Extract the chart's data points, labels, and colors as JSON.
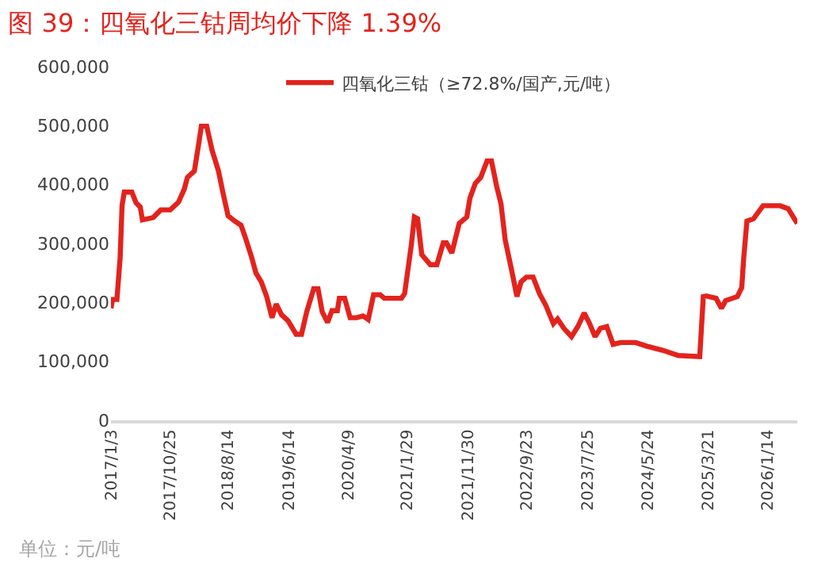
{
  "chart_data": {
    "type": "line",
    "title": "图 39：四氧化三钴周均价下降 1.39%",
    "x": [
      "2017-01-03",
      "2017-01-11",
      "2017-02-02",
      "2017-02-18",
      "2017-02-28",
      "2017-03-11",
      "2017-04-18",
      "2017-05-09",
      "2017-05-30",
      "2017-06-10",
      "2017-08-03",
      "2017-09-10",
      "2017-10-28",
      "2017-12-08",
      "2018-01-06",
      "2018-01-22",
      "2018-02-26",
      "2018-03-17",
      "2018-04-02",
      "2018-04-29",
      "2018-05-26",
      "2018-06-27",
      "2018-07-19",
      "2018-08-14",
      "2018-09-16",
      "2018-10-18",
      "2018-11-08",
      "2018-12-11",
      "2019-01-01",
      "2019-01-28",
      "2019-02-24",
      "2019-03-23",
      "2019-04-13",
      "2019-05-10",
      "2019-06-11",
      "2019-07-22",
      "2019-08-18",
      "2019-09-13",
      "2019-10-18",
      "2019-11-09",
      "2019-11-30",
      "2019-12-27",
      "2020-01-18",
      "2020-02-14",
      "2020-02-24",
      "2020-03-22",
      "2020-04-18",
      "2020-05-20",
      "2020-06-22",
      "2020-07-18",
      "2020-08-14",
      "2020-09-16",
      "2020-10-07",
      "2021-01-01",
      "2021-01-17",
      "2021-02-19",
      "2021-03-07",
      "2021-03-23",
      "2021-04-13",
      "2021-05-26",
      "2021-06-28",
      "2021-07-30",
      "2021-08-15",
      "2021-09-11",
      "2021-10-18",
      "2021-11-25",
      "2021-12-11",
      "2022-01-07",
      "2022-02-03",
      "2022-03-07",
      "2022-03-29",
      "2022-04-24",
      "2022-05-16",
      "2022-06-06",
      "2022-07-08",
      "2022-08-04",
      "2022-08-25",
      "2022-09-21",
      "2022-10-24",
      "2022-11-25",
      "2022-12-27",
      "2023-02-03",
      "2023-02-24",
      "2023-03-28",
      "2023-05-05",
      "2023-06-06",
      "2023-07-08",
      "2023-08-04",
      "2023-08-31",
      "2023-09-27",
      "2023-10-29",
      "2023-11-30",
      "2024-01-07",
      "2024-03-22",
      "2024-05-15",
      "2024-08-03",
      "2024-10-23",
      "2025-02-07",
      "2025-02-25",
      "2025-03-12",
      "2025-04-30",
      "2025-05-27",
      "2025-06-17",
      "2025-08-15",
      "2025-09-06",
      "2025-09-16",
      "2025-10-02",
      "2025-11-04",
      "2025-12-22",
      "2026-03-18",
      "2026-04-27",
      "2026-06-12"
    ],
    "series": [
      {
        "name": "四氧化三钴（≥72.8%/国产,元/吨）",
        "color": "#e3231d",
        "values": [
          190000,
          205000,
          205000,
          275000,
          365000,
          387000,
          387000,
          369000,
          362000,
          340000,
          344000,
          357000,
          357000,
          370000,
          392000,
          412000,
          423000,
          463000,
          499000,
          499000,
          458000,
          423000,
          387000,
          347000,
          338000,
          331000,
          311000,
          276000,
          250000,
          235000,
          210000,
          174000,
          197000,
          179000,
          169000,
          146000,
          146000,
          184000,
          223000,
          223000,
          184000,
          166000,
          186000,
          186000,
          207000,
          207000,
          174000,
          174000,
          177000,
          171000,
          213000,
          213000,
          207000,
          207000,
          215000,
          296000,
          345000,
          342000,
          281000,
          264000,
          264000,
          301000,
          301000,
          284000,
          334000,
          345000,
          377000,
          402000,
          412000,
          440000,
          440000,
          397000,
          367000,
          306000,
          255000,
          210000,
          235000,
          243000,
          243000,
          215000,
          195000,
          164000,
          172000,
          156000,
          142000,
          159000,
          182000,
          164000,
          142000,
          156000,
          159000,
          129000,
          132000,
          132000,
          126000,
          119000,
          110000,
          108000,
          210000,
          211000,
          207000,
          190000,
          203000,
          210000,
          225000,
          276000,
          338000,
          342000,
          364000,
          364000,
          359000,
          334000
        ]
      }
    ],
    "xlim": [
      "2017-01-03",
      "2026-06-12"
    ],
    "xticks": [
      {
        "value": "2017-01-03",
        "label": "2017/1/3"
      },
      {
        "value": "2017-10-25",
        "label": "2017/10/25"
      },
      {
        "value": "2018-08-14",
        "label": "2018/8/14"
      },
      {
        "value": "2019-06-14",
        "label": "2019/6/14"
      },
      {
        "value": "2020-04-09",
        "label": "2020/4/9"
      },
      {
        "value": "2021-01-29",
        "label": "2021/1/29"
      },
      {
        "value": "2021-11-30",
        "label": "2021/11/30"
      },
      {
        "value": "2022-09-23",
        "label": "2022/9/23"
      },
      {
        "value": "2023-07-25",
        "label": "2023/7/25"
      },
      {
        "value": "2024-05-24",
        "label": "2024/5/24"
      },
      {
        "value": "2025-03-21",
        "label": "2025/3/21"
      },
      {
        "value": "2026-01-14",
        "label": "2026/1/14"
      }
    ],
    "ylim": [
      0,
      600000
    ],
    "yticks": [
      {
        "value": 0,
        "label": "0"
      },
      {
        "value": 100000,
        "label": "100,000"
      },
      {
        "value": 200000,
        "label": "200,000"
      },
      {
        "value": 300000,
        "label": "300,000"
      },
      {
        "value": 400000,
        "label": "400,000"
      },
      {
        "value": 500000,
        "label": "500,000"
      },
      {
        "value": 600000,
        "label": "600,000"
      }
    ],
    "legend": "top",
    "marker": "none",
    "line_style": "solid",
    "annotations": [
      "单位：元/吨"
    ]
  }
}
